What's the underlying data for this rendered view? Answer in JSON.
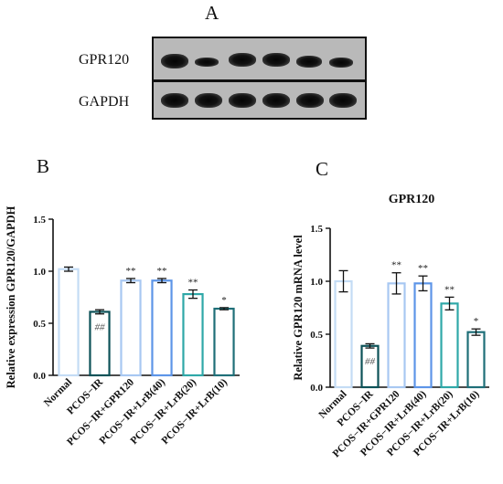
{
  "panels": {
    "a_letter": "A",
    "b_letter": "B",
    "c_letter": "C"
  },
  "western_blot": {
    "rows": [
      {
        "label": "GPR120",
        "band_intensity": [
          0.95,
          0.7,
          0.9,
          0.9,
          0.85,
          0.75
        ]
      },
      {
        "label": "GAPDH",
        "band_intensity": [
          0.95,
          0.95,
          0.95,
          0.95,
          0.95,
          0.95
        ]
      }
    ]
  },
  "colors": {
    "normal": "#c4dcf5",
    "pcos_ir": "#0d5258",
    "gpr120": "#a8c8f2",
    "lrb40": "#5d95e8",
    "lrb20": "#2fa8a8",
    "lrb10": "#1f6f78",
    "axis": "#111111"
  },
  "chart_data": [
    {
      "type": "bar",
      "title": "",
      "xlabel": "",
      "ylabel": "Relative expression GPR120/GAPDH",
      "ylim": [
        0,
        1.5
      ],
      "yticks": [
        "0.0",
        "0.5",
        "1.0",
        "1.5"
      ],
      "categories": [
        "Normal",
        "PCOS−IR",
        "PCOS−IR+GPR120",
        "PCOS−IR+LrB(40)",
        "PCOS−IR+LrB(20)",
        "PCOS−IR+LrB(10)"
      ],
      "values": [
        1.02,
        0.61,
        0.91,
        0.91,
        0.78,
        0.64
      ],
      "errors": [
        0.02,
        0.02,
        0.02,
        0.02,
        0.04,
        0.01
      ],
      "annotations": [
        "",
        "##",
        "**",
        "**",
        "**",
        "*"
      ],
      "grid": false
    },
    {
      "type": "bar",
      "title": "GPR120",
      "xlabel": "",
      "ylabel": "Relative GPR120 mRNA level",
      "ylim": [
        0,
        1.5
      ],
      "yticks": [
        "0.0",
        "0.5",
        "1.0",
        "1.5"
      ],
      "categories": [
        "Normal",
        "PCOS−IR",
        "PCOS−IR+GPR120",
        "PCOS−IR+LrB(40)",
        "PCOS−IR+LrB(20)",
        "PCOS−IR+LrB(10)"
      ],
      "values": [
        1.0,
        0.39,
        0.98,
        0.98,
        0.79,
        0.52
      ],
      "errors": [
        0.1,
        0.02,
        0.1,
        0.07,
        0.06,
        0.03
      ],
      "annotations": [
        "",
        "##",
        "**",
        "**",
        "**",
        "*"
      ],
      "grid": false
    }
  ]
}
